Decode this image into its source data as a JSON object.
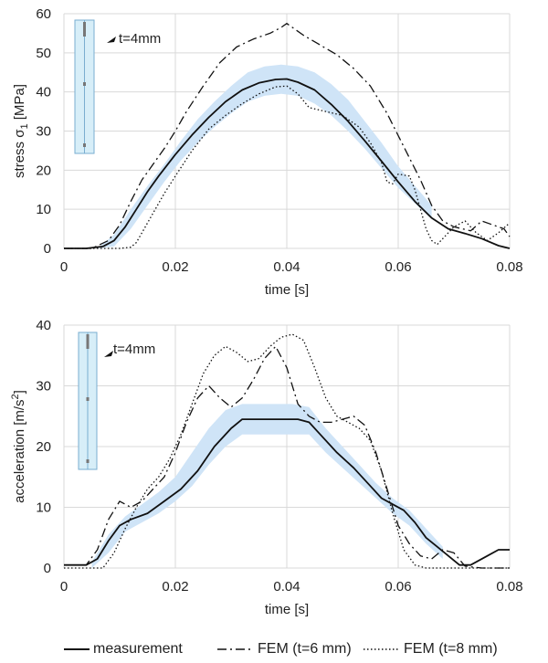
{
  "chart_data": [
    {
      "type": "line",
      "xlabel": "time [s]",
      "ylabel": "stress σ",
      "ylabel_sub": "1",
      "ylabel_unit": " [MPa]",
      "xlim": [
        0,
        0.08
      ],
      "ylim": [
        0,
        60
      ],
      "x_ticks": [
        "0",
        "0.02",
        "0.04",
        "0.06",
        "0.08"
      ],
      "y_ticks": [
        "0",
        "10",
        "20",
        "30",
        "40",
        "50",
        "60"
      ],
      "grid": true,
      "annotation": "t=4mm",
      "series": [
        {
          "name": "measurement",
          "style": "solid",
          "x": [
            0,
            0.004,
            0.007,
            0.009,
            0.011,
            0.013,
            0.015,
            0.017,
            0.02,
            0.023,
            0.026,
            0.029,
            0.032,
            0.035,
            0.038,
            0.04,
            0.042,
            0.045,
            0.048,
            0.051,
            0.054,
            0.057,
            0.06,
            0.063,
            0.066,
            0.069,
            0.072,
            0.075,
            0.078,
            0.08
          ],
          "y": [
            0,
            0,
            0.5,
            2,
            5.5,
            10,
            14.5,
            18.5,
            24,
            29,
            33.5,
            37.5,
            40.5,
            42.3,
            43.2,
            43.3,
            42.5,
            40.5,
            36.8,
            32.5,
            27.5,
            22.3,
            17,
            12,
            7.8,
            5,
            3.8,
            2.5,
            0.7,
            0
          ]
        },
        {
          "name": "FEM (t=6 mm)",
          "style": "dashdot",
          "x": [
            0,
            0.005,
            0.008,
            0.01,
            0.012,
            0.014,
            0.016,
            0.018,
            0.02,
            0.022,
            0.025,
            0.028,
            0.031,
            0.034,
            0.037,
            0.039,
            0.04,
            0.041,
            0.043,
            0.046,
            0.049,
            0.052,
            0.055,
            0.058,
            0.061,
            0.064,
            0.066,
            0.068,
            0.07,
            0.073,
            0.075,
            0.077,
            0.079,
            0.08
          ],
          "y": [
            0,
            0,
            2,
            6,
            12,
            17.5,
            21.5,
            25.5,
            30,
            35,
            41.5,
            47.5,
            51.5,
            53.5,
            55,
            56.5,
            57.5,
            56.5,
            54.5,
            52,
            49.5,
            46,
            41.5,
            34.5,
            26,
            17.5,
            11,
            7,
            5.5,
            4.5,
            7,
            6,
            5,
            3
          ]
        },
        {
          "name": "FEM (t=8 mm)",
          "style": "dotted",
          "x": [
            0,
            0.01,
            0.012,
            0.013,
            0.014,
            0.016,
            0.018,
            0.02,
            0.023,
            0.026,
            0.029,
            0.032,
            0.035,
            0.038,
            0.04,
            0.042,
            0.044,
            0.047,
            0.05,
            0.053,
            0.055,
            0.057,
            0.058,
            0.059,
            0.06,
            0.062,
            0.063,
            0.064,
            0.065,
            0.066,
            0.067,
            0.068,
            0.07,
            0.072,
            0.074,
            0.076,
            0.078,
            0.08
          ],
          "y": [
            0,
            0,
            0.3,
            1.5,
            4,
            9,
            14,
            18.5,
            25,
            30.5,
            34,
            37,
            39.5,
            41.3,
            41.5,
            39.5,
            36,
            35,
            34,
            31,
            27,
            22,
            17,
            16.5,
            19,
            18.5,
            15,
            10,
            5,
            2,
            1,
            2.5,
            5.5,
            7,
            4,
            2,
            4,
            6.5
          ]
        }
      ],
      "band": {
        "name": "measurement spread",
        "x": [
          0.006,
          0.009,
          0.012,
          0.015,
          0.018,
          0.021,
          0.024,
          0.027,
          0.03,
          0.033,
          0.036,
          0.039,
          0.042,
          0.045,
          0.048,
          0.051,
          0.054,
          0.057,
          0.06,
          0.063,
          0.066
        ],
        "lower": [
          0,
          0.5,
          5,
          11,
          17,
          22.5,
          27,
          31,
          34.5,
          37.5,
          39,
          39.5,
          39,
          37,
          34,
          30,
          25.5,
          20.5,
          15.5,
          11.5,
          7.5
        ],
        "upper": [
          0,
          3.5,
          10,
          16,
          21.5,
          27.5,
          33,
          37.5,
          41.5,
          45,
          46.5,
          47,
          46.5,
          45,
          42,
          38,
          32.5,
          27,
          21,
          16,
          11
        ]
      }
    },
    {
      "type": "line",
      "xlabel": "time [s]",
      "ylabel": "acceleration [m/s",
      "ylabel_sup": "2",
      "ylabel_unit": "]",
      "xlim": [
        0,
        0.08
      ],
      "ylim": [
        0,
        40
      ],
      "x_ticks": [
        "0",
        "0.02",
        "0.04",
        "0.06",
        "0.08"
      ],
      "y_ticks": [
        "0",
        "10",
        "20",
        "30",
        "40"
      ],
      "grid": true,
      "annotation": "t=4mm",
      "series": [
        {
          "name": "measurement",
          "style": "solid",
          "x": [
            0,
            0.004,
            0.006,
            0.008,
            0.01,
            0.012,
            0.015,
            0.018,
            0.021,
            0.024,
            0.027,
            0.03,
            0.032,
            0.034,
            0.037,
            0.04,
            0.042,
            0.044,
            0.046,
            0.049,
            0.052,
            0.055,
            0.057,
            0.059,
            0.061,
            0.063,
            0.065,
            0.067,
            0.069,
            0.071,
            0.073,
            0.076,
            0.078,
            0.08
          ],
          "y": [
            0.5,
            0.5,
            1.5,
            4.5,
            7,
            8,
            9,
            11,
            13,
            16,
            20,
            23,
            24.5,
            24.5,
            24.5,
            24.5,
            24.5,
            24,
            22,
            19,
            16.5,
            13.5,
            11.5,
            10.5,
            9.5,
            7.5,
            5,
            3.5,
            2,
            0.5,
            0.5,
            2,
            3,
            3
          ]
        },
        {
          "name": "FEM (t=6 mm)",
          "style": "dashdot",
          "x": [
            0,
            0.004,
            0.006,
            0.008,
            0.01,
            0.012,
            0.014,
            0.016,
            0.018,
            0.02,
            0.022,
            0.024,
            0.026,
            0.028,
            0.03,
            0.032,
            0.034,
            0.036,
            0.038,
            0.04,
            0.042,
            0.044,
            0.046,
            0.048,
            0.05,
            0.052,
            0.054,
            0.056,
            0.058,
            0.06,
            0.062,
            0.064,
            0.066,
            0.068,
            0.07,
            0.072,
            0.075,
            0.08
          ],
          "y": [
            0.5,
            0.5,
            3,
            8,
            11,
            10,
            11,
            13,
            15,
            19,
            24,
            28,
            30,
            28,
            26.5,
            28,
            31,
            34.5,
            36.5,
            33,
            27,
            25,
            24,
            24,
            24.5,
            25,
            23.5,
            19,
            13,
            7,
            4,
            2,
            1.5,
            3,
            2.5,
            0.3,
            0,
            0
          ]
        },
        {
          "name": "FEM (t=8 mm)",
          "style": "dotted",
          "x": [
            0,
            0.005,
            0.007,
            0.009,
            0.011,
            0.013,
            0.015,
            0.017,
            0.019,
            0.021,
            0.023,
            0.025,
            0.027,
            0.029,
            0.031,
            0.033,
            0.035,
            0.037,
            0.039,
            0.041,
            0.043,
            0.045,
            0.047,
            0.049,
            0.051,
            0.053,
            0.055,
            0.057,
            0.059,
            0.061,
            0.063,
            0.065,
            0.08
          ],
          "y": [
            0,
            0,
            0,
            2.5,
            6.5,
            10,
            13,
            15,
            18,
            22,
            27,
            32,
            35,
            36.5,
            35.5,
            34,
            34.5,
            36.5,
            38,
            38.5,
            37.5,
            33,
            28,
            25,
            24,
            23,
            21,
            16,
            9,
            3,
            0.5,
            0,
            0
          ]
        }
      ],
      "band": {
        "name": "measurement spread",
        "x": [
          0.005,
          0.008,
          0.011,
          0.014,
          0.017,
          0.02,
          0.023,
          0.026,
          0.029,
          0.032,
          0.035,
          0.038,
          0.041,
          0.044,
          0.047,
          0.05,
          0.053,
          0.056,
          0.059,
          0.062,
          0.065,
          0.068
        ],
        "lower": [
          0,
          2.5,
          6,
          7.5,
          9,
          11,
          13.5,
          17,
          20,
          22,
          22,
          22,
          22,
          22,
          19,
          16.5,
          14,
          11.5,
          9,
          7,
          4,
          1.5
        ],
        "upper": [
          1,
          5.5,
          8.5,
          10.5,
          12.5,
          15,
          19,
          23,
          26,
          27,
          27,
          27,
          27,
          26.5,
          23,
          20,
          17,
          14,
          11.5,
          9.5,
          6.5,
          3.5
        ]
      }
    }
  ],
  "legend": [
    {
      "label": "measurement",
      "style": "solid"
    },
    {
      "label": "FEM (t=6 mm)",
      "style": "dashdot"
    },
    {
      "label": "FEM (t=8 mm)",
      "style": "dotted"
    }
  ],
  "colors": {
    "line": "#111111",
    "band": "#cfe4f7",
    "grid": "#d9d9d9",
    "inset_fill": "#d7eef8",
    "inset_stroke": "#7aaed0",
    "inset_marker": "#777777"
  }
}
